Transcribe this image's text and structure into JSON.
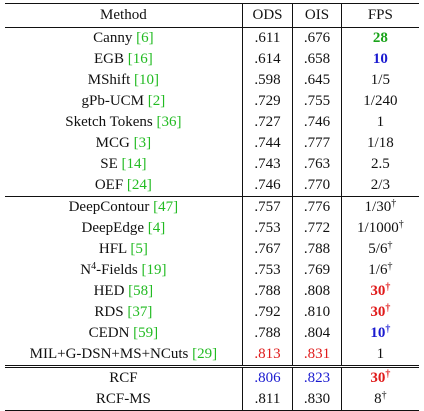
{
  "headers": {
    "method": "Method",
    "ods": "ODS",
    "ois": "OIS",
    "fps": "FPS"
  },
  "rows": [
    {
      "name": "Canny ",
      "cite": "[6]",
      "ods": ".611",
      "ois": ".676",
      "fps": "28",
      "fps_sup": "",
      "fps_color": "green",
      "ods_color": "",
      "ois_color": ""
    },
    {
      "name": "EGB ",
      "cite": "[16]",
      "ods": ".614",
      "ois": ".658",
      "fps": "10",
      "fps_sup": "",
      "fps_color": "blue",
      "ods_color": "",
      "ois_color": ""
    },
    {
      "name": "MShift ",
      "cite": "[10]",
      "ods": ".598",
      "ois": ".645",
      "fps": "1/5",
      "fps_sup": "",
      "fps_color": "",
      "ods_color": "",
      "ois_color": ""
    },
    {
      "name": "gPb-UCM ",
      "cite": "[2]",
      "ods": ".729",
      "ois": ".755",
      "fps": "1/240",
      "fps_sup": "",
      "fps_color": "",
      "ods_color": "",
      "ois_color": ""
    },
    {
      "name": "Sketch Tokens ",
      "cite": "[36]",
      "ods": ".727",
      "ois": ".746",
      "fps": "1",
      "fps_sup": "",
      "fps_color": "",
      "ods_color": "",
      "ois_color": ""
    },
    {
      "name": "MCG ",
      "cite": "[3]",
      "ods": ".744",
      "ois": ".777",
      "fps": "1/18",
      "fps_sup": "",
      "fps_color": "",
      "ods_color": "",
      "ois_color": ""
    },
    {
      "name": "SE ",
      "cite": "[14]",
      "ods": ".743",
      "ois": ".763",
      "fps": "2.5",
      "fps_sup": "",
      "fps_color": "",
      "ods_color": "",
      "ois_color": ""
    },
    {
      "name": "OEF ",
      "cite": "[24]",
      "ods": ".746",
      "ois": ".770",
      "fps": "2/3",
      "fps_sup": "",
      "fps_color": "",
      "ods_color": "",
      "ois_color": ""
    },
    {
      "name": "DeepContour ",
      "cite": "[47]",
      "ods": ".757",
      "ois": ".776",
      "fps": "1/30",
      "fps_sup": "†",
      "fps_color": "",
      "ods_color": "",
      "ois_color": ""
    },
    {
      "name": "DeepEdge ",
      "cite": "[4]",
      "ods": ".753",
      "ois": ".772",
      "fps": "1/1000",
      "fps_sup": "†",
      "fps_color": "",
      "ods_color": "",
      "ois_color": ""
    },
    {
      "name": "HFL ",
      "cite": "[5]",
      "ods": ".767",
      "ois": ".788",
      "fps": "5/6",
      "fps_sup": "†",
      "fps_color": "",
      "ods_color": "",
      "ois_color": ""
    },
    {
      "name_pre": "N",
      "name_sup": "4",
      "name": "-Fields ",
      "cite": "[19]",
      "ods": ".753",
      "ois": ".769",
      "fps": "1/6",
      "fps_sup": "†",
      "fps_color": "",
      "ods_color": "",
      "ois_color": ""
    },
    {
      "name": "HED ",
      "cite": "[58]",
      "ods": ".788",
      "ois": ".808",
      "fps": "30",
      "fps_sup": "†",
      "fps_color": "red",
      "ods_color": "",
      "ois_color": ""
    },
    {
      "name": "RDS ",
      "cite": "[37]",
      "ods": ".792",
      "ois": ".810",
      "fps": "30",
      "fps_sup": "†",
      "fps_color": "red",
      "ods_color": "",
      "ois_color": ""
    },
    {
      "name": "CEDN ",
      "cite": "[59]",
      "ods": ".788",
      "ois": ".804",
      "fps": "10",
      "fps_sup": "†",
      "fps_color": "blue",
      "ods_color": "",
      "ois_color": ""
    },
    {
      "name": "MIL+G-DSN+MS+NCuts ",
      "cite": "[29]",
      "ods": ".813",
      "ois": ".831",
      "fps": "1",
      "fps_sup": "",
      "fps_color": "",
      "ods_color": "red",
      "ois_color": "red"
    },
    {
      "name": "RCF",
      "cite": "",
      "ods": ".806",
      "ois": ".823",
      "fps": "30",
      "fps_sup": "†",
      "fps_color": "red",
      "ods_color": "blue",
      "ois_color": "blue"
    },
    {
      "name": "RCF-MS",
      "cite": "",
      "ods": ".811",
      "ois": ".830",
      "fps": "8",
      "fps_sup": "†",
      "fps_color": "",
      "ods_color": "",
      "ois_color": ""
    }
  ]
}
